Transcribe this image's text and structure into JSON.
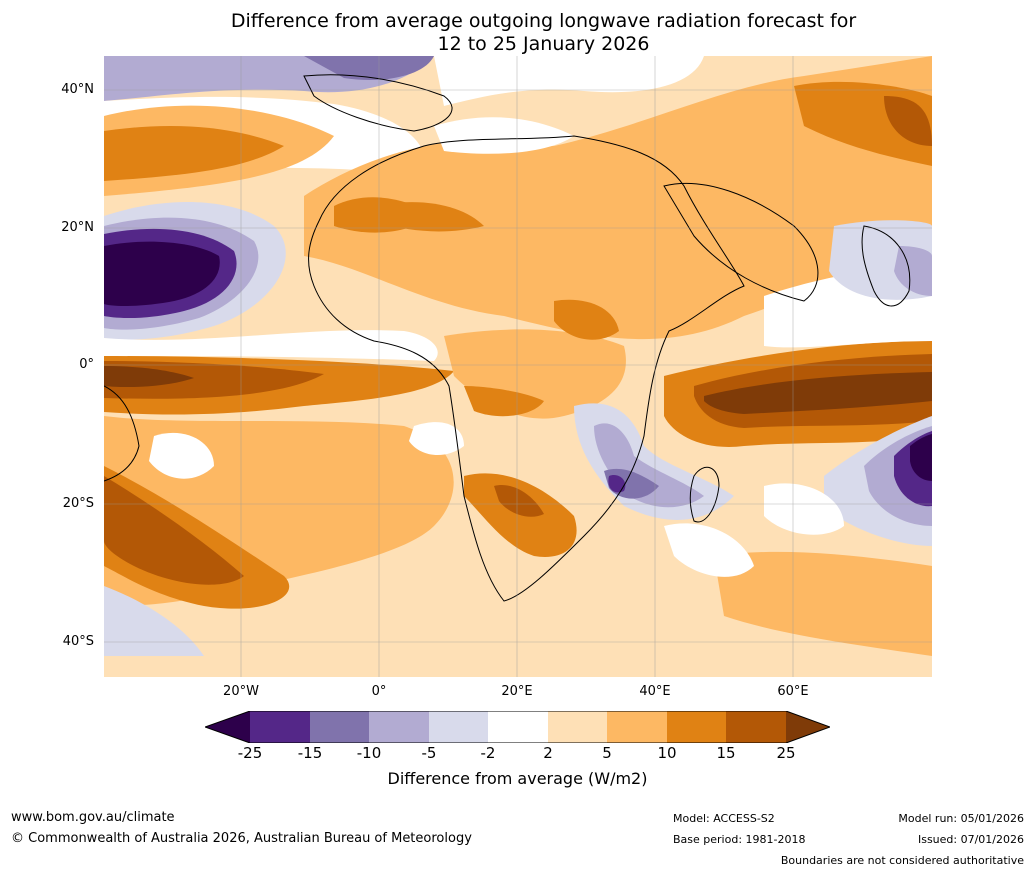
{
  "title": {
    "line1": "Difference from average outgoing longwave radiation forecast for",
    "line2": "12 to 25 January 2026"
  },
  "axes": {
    "lat_labels": [
      "40°N",
      "20°N",
      "0°",
      "20°S",
      "40°S"
    ],
    "lon_labels": [
      "20°W",
      "0°",
      "20°E",
      "40°E",
      "60°E"
    ]
  },
  "colorbar": {
    "ticks": [
      "-25",
      "-15",
      "-10",
      "-5",
      "-2",
      "2",
      "5",
      "10",
      "15",
      "25"
    ],
    "label": "Difference from average (W/m2)",
    "colors": {
      "lt_minus25": "#2d004b",
      "m25_m15": "#542788",
      "m15_m10": "#8073ac",
      "m10_m5": "#b2abd2",
      "m5_m2": "#d8daeb",
      "m2_p2": "#ffffff",
      "p2_p5": "#fee0b6",
      "p5_p10": "#fdb863",
      "p10_p15": "#e08214",
      "p15_p25": "#b35806",
      "gt_25": "#7f3b08"
    }
  },
  "footer": {
    "website": "www.bom.gov.au/climate",
    "copyright": "© Commonwealth of Australia 2026, Australian Bureau of Meteorology",
    "model": "Model: ACCESS-S2",
    "base_period": "Base period: 1981-2018",
    "model_run": "Model run: 05/01/2026",
    "issued": "Issued: 07/01/2026",
    "disclaimer": "Boundaries are not considered authoritative"
  }
}
